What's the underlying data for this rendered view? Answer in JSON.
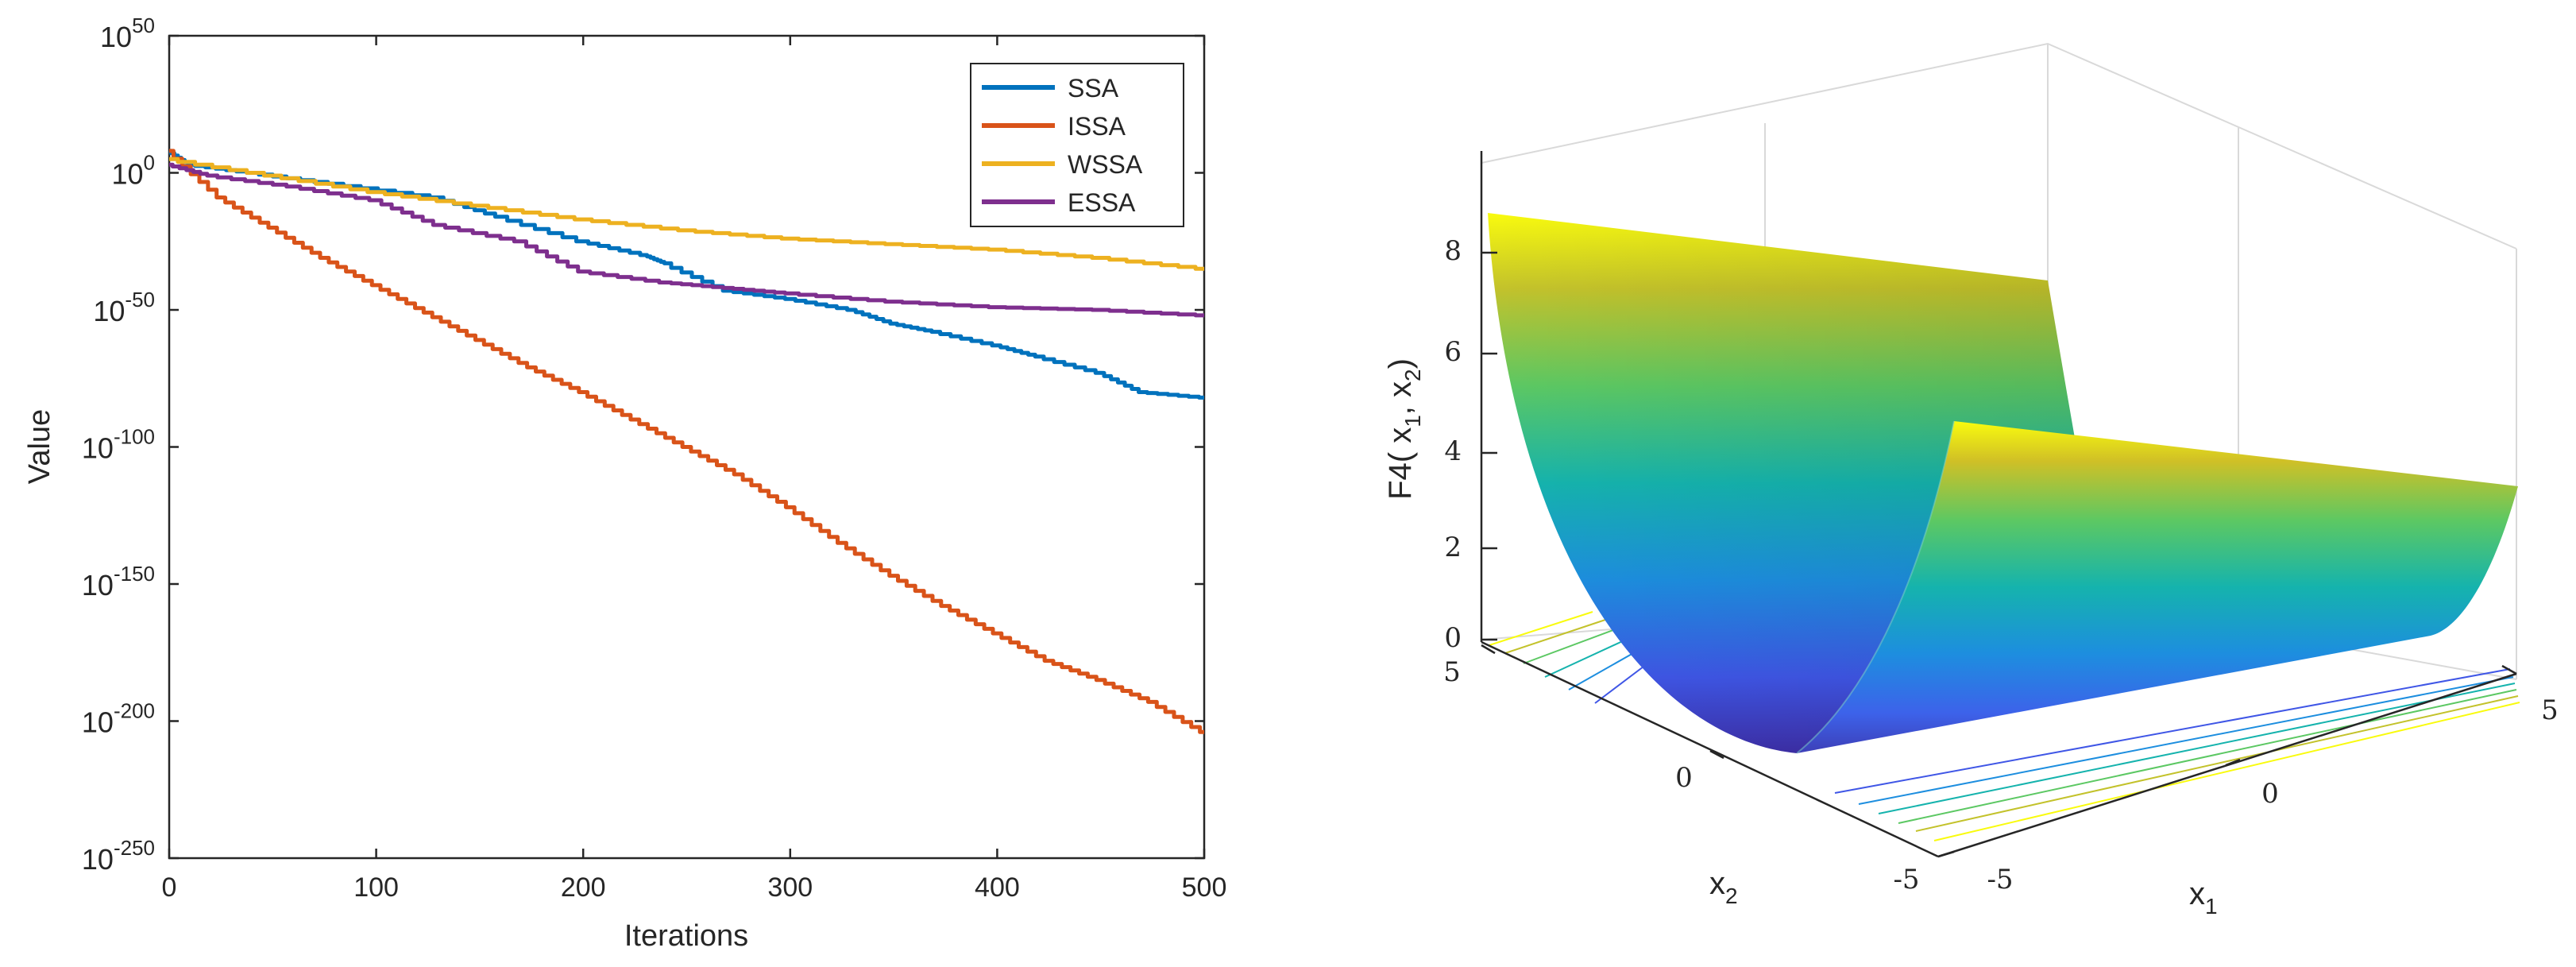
{
  "chart_data": [
    {
      "type": "line",
      "title": "",
      "xlabel": "Iterations",
      "ylabel": "Value",
      "xlim": [
        0,
        500
      ],
      "ylim_log10": [
        -250,
        50
      ],
      "yscale": "log",
      "x_ticks": [
        0,
        100,
        200,
        300,
        400,
        500
      ],
      "y_tick_exponents": [
        50,
        0,
        -50,
        -100,
        -150,
        -200,
        -250
      ],
      "y_tick_base": "10",
      "grid": false,
      "legend_position": "top-right",
      "series": [
        {
          "name": "SSA",
          "color": "#0072BD",
          "x": [
            0,
            10,
            40,
            80,
            130,
            160,
            200,
            230,
            240,
            270,
            300,
            330,
            350,
            370,
            400,
            420,
            450,
            470,
            500
          ],
          "log10_values": [
            8,
            3,
            0,
            -4,
            -9,
            -16,
            -25,
            -30,
            -33,
            -43,
            -46,
            -50,
            -55,
            -58,
            -63,
            -67,
            -73,
            -80,
            -82
          ]
        },
        {
          "name": "ISSA",
          "color": "#D95319",
          "x": [
            0,
            25,
            50,
            75,
            100,
            125,
            150,
            175,
            200,
            225,
            250,
            275,
            300,
            325,
            350,
            375,
            400,
            425,
            450,
            475,
            500
          ],
          "log10_values": [
            8,
            -9,
            -20,
            -31,
            -41,
            -51,
            -61,
            -71,
            -80,
            -90,
            -100,
            -110,
            -122,
            -135,
            -147,
            -158,
            -168,
            -178,
            -185,
            -193,
            -204
          ]
        },
        {
          "name": "WSSA",
          "color": "#EDB120",
          "x": [
            0,
            50,
            100,
            150,
            200,
            250,
            300,
            350,
            400,
            450,
            500
          ],
          "log10_values": [
            5,
            -1,
            -7,
            -12,
            -17,
            -21,
            -24,
            -26,
            -28,
            -31,
            -35
          ]
        },
        {
          "name": "ESSA",
          "color": "#7E2F8E",
          "x": [
            0,
            20,
            60,
            100,
            130,
            170,
            200,
            240,
            270,
            300,
            350,
            400,
            450,
            500
          ],
          "log10_values": [
            3,
            -1,
            -5,
            -10,
            -19,
            -25,
            -36,
            -40,
            -42,
            -44,
            -47,
            -49,
            -50,
            -52
          ]
        }
      ]
    },
    {
      "type": "surface",
      "function_label": "F4",
      "xlabel_base": "x",
      "xlabel_sub": "1",
      "ylabel_base": "x",
      "ylabel_sub": "2",
      "zlabel_main": "F4( x",
      "zlabel_sub1": "1",
      "zlabel_sep": ", x",
      "zlabel_sub2": "2",
      "zlabel_end": ")",
      "x_ticks": [
        "-5",
        "0",
        "5"
      ],
      "y_ticks": [
        "-5",
        "0",
        "5"
      ],
      "z_ticks": [
        "0",
        "2",
        "4",
        "6",
        "8"
      ],
      "zlim": [
        0,
        9
      ],
      "colormap": "parula"
    }
  ]
}
